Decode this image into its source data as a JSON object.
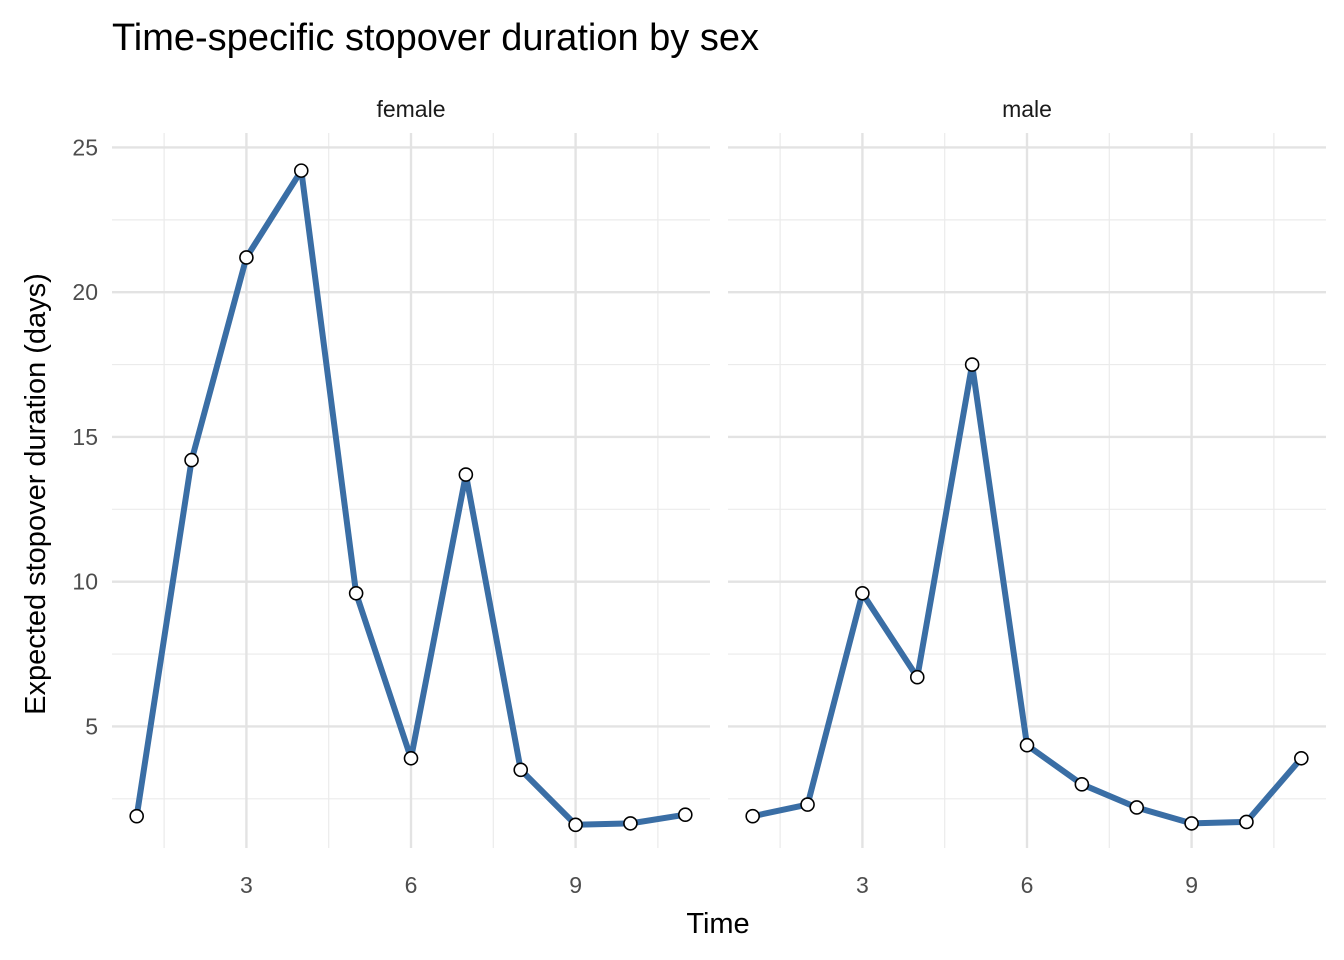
{
  "chart_data": {
    "type": "line",
    "title": "Time-specific stopover duration by sex",
    "xlabel": "Time",
    "ylabel": "Expected stopover duration (days)",
    "xlim": [
      0.55,
      11.45
    ],
    "ylim": [
      0.8,
      25.5
    ],
    "x_ticks": [
      3,
      6,
      9
    ],
    "x_tick_labels": [
      "3",
      "6",
      "9"
    ],
    "y_ticks": [
      5,
      10,
      15,
      20,
      25
    ],
    "y_tick_labels": [
      "5",
      "10",
      "15",
      "20",
      "25"
    ],
    "grid": true,
    "line_color": "#3A6EA5",
    "marker_fill": "#ffffff",
    "marker_stroke": "#000000",
    "facets": [
      {
        "label": "female",
        "x": [
          1,
          2,
          3,
          4,
          5,
          6,
          7,
          8,
          9,
          10,
          11
        ],
        "values": [
          1.9,
          14.2,
          21.2,
          24.2,
          9.6,
          3.9,
          13.7,
          3.5,
          1.6,
          1.65,
          1.95
        ]
      },
      {
        "label": "male",
        "x": [
          1,
          2,
          3,
          4,
          5,
          6,
          7,
          8,
          9,
          10,
          11
        ],
        "values": [
          1.9,
          2.3,
          9.6,
          6.7,
          17.5,
          4.35,
          3.0,
          2.2,
          1.65,
          1.7,
          3.9
        ]
      }
    ]
  }
}
